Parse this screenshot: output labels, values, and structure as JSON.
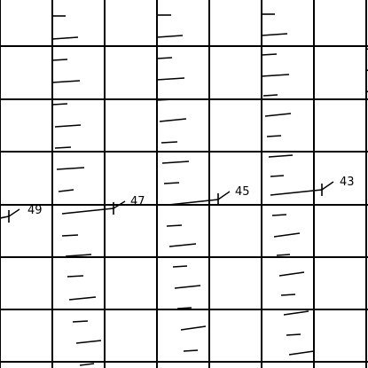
{
  "colors": {
    "line": "#000000",
    "background": "#ffffff"
  },
  "markers": [
    {
      "label": "49"
    },
    {
      "label": "47"
    },
    {
      "label": "45"
    },
    {
      "label": "43"
    }
  ]
}
